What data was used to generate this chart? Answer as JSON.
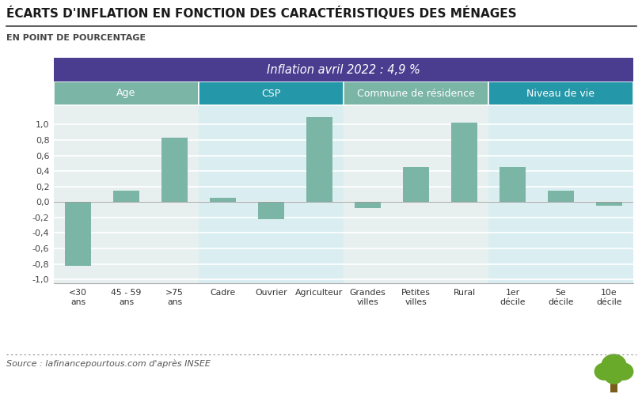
{
  "title": "ÉCARTS D'INFLATION EN FONCTION DES CARACTÉRISTIQUES DES MÉNAGES",
  "subtitle": "EN POINT DE POURCENTAGE",
  "banner_text": "Inflation avril 2022 : 4,9 %",
  "source": "Source : lafinancepourtous.com d'après INSEE",
  "categories": [
    "<30\nans",
    "45 - 59\nans",
    ">75\nans",
    "Cadre",
    "Ouvrier",
    "Agriculteur",
    "Grandes\nvilles",
    "Petites\nvilles",
    "Rural",
    "1er\ndécile",
    "5e\ndécile",
    "10e\ndécile"
  ],
  "values": [
    -0.83,
    0.15,
    0.83,
    0.05,
    -0.22,
    1.1,
    -0.08,
    0.45,
    1.03,
    0.45,
    0.15,
    -0.05
  ],
  "group_labels": [
    "Age",
    "CSP",
    "Commune de résidence",
    "Niveau de vie"
  ],
  "group_ranges": [
    [
      0,
      2
    ],
    [
      3,
      5
    ],
    [
      6,
      8
    ],
    [
      9,
      11
    ]
  ],
  "bar_color": "#7ab5a5",
  "group_bg_colors": [
    "#e8f0ef",
    "#daeef2",
    "#e8f0ef",
    "#daeef2"
  ],
  "group_header_colors": [
    "#7ab5a5",
    "#2497a8",
    "#7ab5a5",
    "#2497a8"
  ],
  "group_header_text_colors": [
    "#ffffff",
    "#ffffff",
    "#555555",
    "#555555"
  ],
  "banner_bg": "#4a3d8f",
  "banner_fg": "#ffffff",
  "ylim": [
    -1.05,
    1.25
  ],
  "yticks": [
    -1.0,
    -0.8,
    -0.6,
    -0.4,
    -0.2,
    0.0,
    0.2,
    0.4,
    0.6,
    0.8,
    1.0
  ],
  "ytick_labels": [
    "-1,0",
    "-0,8",
    "-0,6",
    "-0,4",
    "-0,2",
    "0,0",
    "0,2",
    "0,4",
    "0,6",
    "0,8",
    "1,0"
  ],
  "bg_color": "#ffffff",
  "grid_color": "#ffffff",
  "title_color": "#1a1a1a",
  "subtitle_color": "#444444",
  "tree_color": "#6aaa2a"
}
